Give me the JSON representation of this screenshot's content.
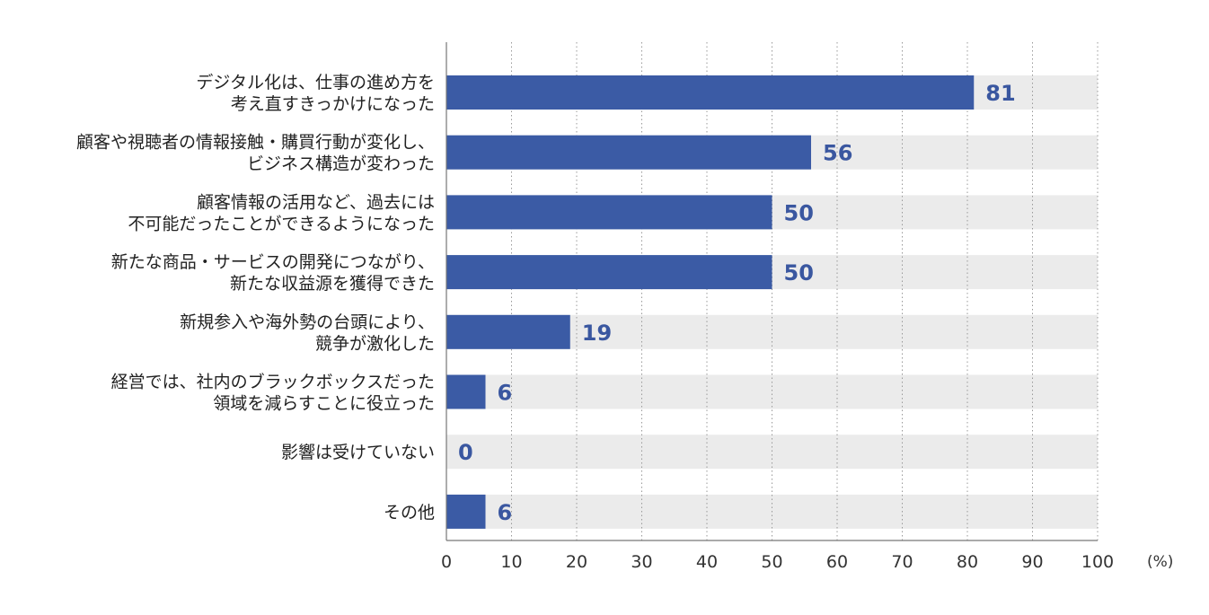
{
  "chart_data": {
    "type": "bar",
    "orientation": "horizontal",
    "title": "",
    "xlabel": "",
    "ylabel": "",
    "unit": "(%)",
    "xlim": [
      0,
      100
    ],
    "ticks": [
      0,
      10,
      20,
      30,
      40,
      50,
      60,
      70,
      80,
      90,
      100
    ],
    "grid": "vertical dotted",
    "legend": "none",
    "categories": [
      [
        "デジタル化は、仕事の進め方を",
        "考え直すきっかけになった"
      ],
      [
        "顧客や視聴者の情報接触・購買行動が変化し、",
        "ビジネス構造が変わった"
      ],
      [
        "顧客情報の活用など、過去には",
        "不可能だったことができるようになった"
      ],
      [
        "新たな商品・サービスの開発につながり、",
        "新たな収益源を獲得できた"
      ],
      [
        "新規参入や海外勢の台頭により、",
        "競争が激化した"
      ],
      [
        "経営では、社内のブラックボックスだった",
        "領域を減らすことに役立った"
      ],
      [
        "影響は受けていない"
      ],
      [
        "その他"
      ]
    ],
    "values": [
      81,
      56,
      50,
      50,
      19,
      6,
      0,
      6
    ],
    "colors": {
      "bar": "#3b5ba5",
      "track": "#ebebeb",
      "value_text": "#3a57a0",
      "axis": "#777777",
      "grid": "#999999"
    }
  }
}
